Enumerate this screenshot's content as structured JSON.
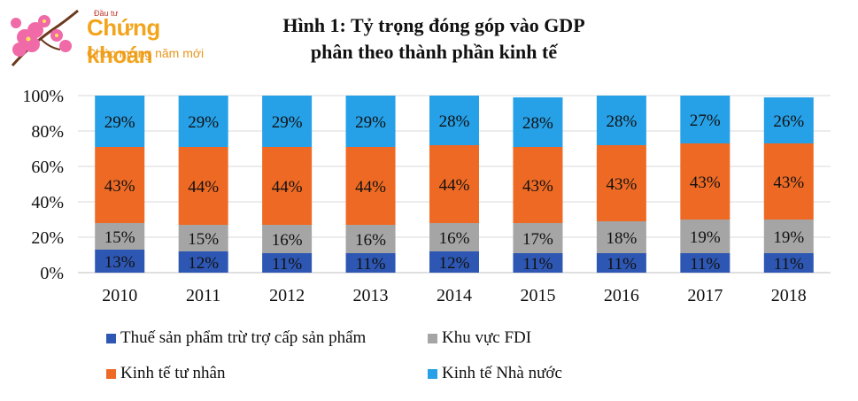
{
  "logo": {
    "small_text": "Đầu tư",
    "brand": "Chứng khoán",
    "tagline": "Chúc mừng năm mới"
  },
  "colors": {
    "tax": "#2e57b3",
    "fdi": "#a5a5a5",
    "private": "#ee6a24",
    "state": "#26a0e6"
  },
  "chart_data": {
    "type": "bar",
    "stacked": true,
    "title": "Hình 1: Tỷ trọng đóng góp vào GDP",
    "subtitle": "phân theo thành phần kinh tế",
    "categories": [
      "2010",
      "2011",
      "2012",
      "2013",
      "2014",
      "2015",
      "2016",
      "2017",
      "2018"
    ],
    "ylim": [
      0,
      100
    ],
    "yticks": [
      "0%",
      "20%",
      "40%",
      "60%",
      "80%",
      "100%"
    ],
    "series": [
      {
        "name": "Thuế sản phẩm trừ trợ cấp sản phẩm",
        "key": "tax",
        "values": [
          13,
          12,
          11,
          11,
          12,
          11,
          11,
          11,
          11
        ],
        "labels": [
          "13%",
          "12%",
          "11%",
          "11%",
          "12%",
          "11%",
          "11%",
          "11%",
          "11%"
        ]
      },
      {
        "name": "Khu vực FDI",
        "key": "fdi",
        "values": [
          15,
          15,
          16,
          16,
          16,
          17,
          18,
          19,
          19
        ],
        "labels": [
          "15%",
          "15%",
          "16%",
          "16%",
          "16%",
          "17%",
          "18%",
          "19%",
          "19%"
        ]
      },
      {
        "name": "Kinh tế tư nhân",
        "key": "private",
        "values": [
          43,
          44,
          44,
          44,
          44,
          43,
          43,
          43,
          43
        ],
        "labels": [
          "43%",
          "44%",
          "44%",
          "44%",
          "44%",
          "43%",
          "43%",
          "43%",
          "43%"
        ]
      },
      {
        "name": "Kinh tế Nhà nước",
        "key": "state",
        "values": [
          29,
          29,
          29,
          29,
          28,
          28,
          28,
          27,
          26
        ],
        "labels": [
          "29%",
          "29%",
          "29%",
          "29%",
          "28%",
          "28%",
          "28%",
          "27%",
          "26%"
        ]
      }
    ],
    "legend_position": "bottom"
  }
}
